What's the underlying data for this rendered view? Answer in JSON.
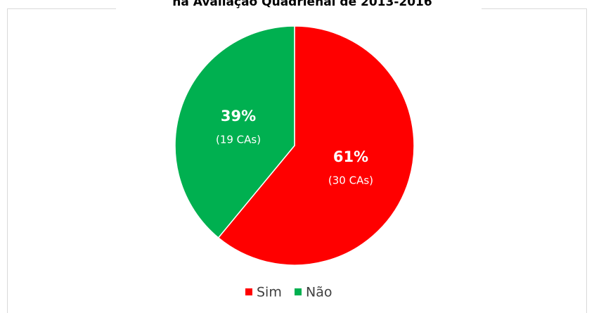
{
  "chart_data": {
    "type": "pie",
    "title": "na Avaliação Quadrienal de 2013-2016",
    "categories": [
      "Sim",
      "Não"
    ],
    "values": [
      61,
      39
    ],
    "value_labels": [
      "61%",
      "39%"
    ],
    "count_labels": [
      "(30 CAs)",
      "(19 CAs)"
    ],
    "colors": [
      "#ff0000",
      "#00b050"
    ],
    "legend": "bottom"
  }
}
